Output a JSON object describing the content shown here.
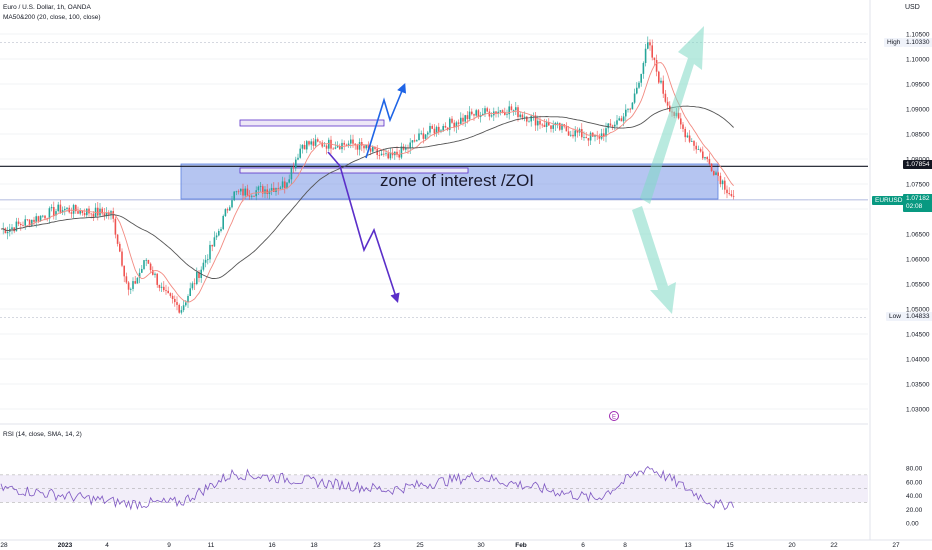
{
  "header": {
    "symbol_line": "Euro / U.S. Dollar, 1h, OANDA",
    "indicator_line": "MA50&200 (20, close, 100, close)",
    "currency": "USD"
  },
  "price_axis": {
    "ticks": [
      "1.10500",
      "1.10000",
      "1.09500",
      "1.09000",
      "1.08500",
      "1.08000",
      "1.07500",
      "1.07000",
      "1.06500",
      "1.06000",
      "1.05500",
      "1.05000",
      "1.04500",
      "1.04000",
      "1.03500",
      "1.03000"
    ],
    "high_label": "High",
    "high_value": "1.10330",
    "low_label": "Low",
    "low_value": "1.04833",
    "level_value": "1.07854",
    "symbol_tag": "EURUSD",
    "current_value": "1.07182",
    "countdown": "02:08"
  },
  "rsi": {
    "label": "RSI (14, close, SMA, 14, 2)",
    "ticks": [
      "80.00",
      "60.00",
      "40.00",
      "20.00",
      "0.00"
    ],
    "upper": 70,
    "middle": 50,
    "lower": 30
  },
  "time_axis": {
    "ticks": [
      "28",
      "2023",
      "4",
      "9",
      "11",
      "16",
      "18",
      "23",
      "25",
      "30",
      "Feb",
      "6",
      "8",
      "13",
      "15",
      "20",
      "22",
      "27"
    ]
  },
  "annotations": {
    "zoi_label": "zone of interest /ZOI",
    "event_marker": "E"
  },
  "colors": {
    "up": "#26a69a",
    "down": "#ef5350",
    "ma_fast": "#f28b82",
    "ma_slow": "#555555",
    "zone": "#5b7fe0",
    "rsi_line": "#7e57c2",
    "rsi_band": "#ede7f6",
    "arrow_blue": "#1e64e6",
    "arrow_purple": "#5b2fc9",
    "arrow_teal": "#80d8c4",
    "current_tag": "#089981",
    "level_tag": "#131722"
  },
  "chart_data": {
    "type": "candlestick",
    "title": "Euro / U.S. Dollar, 1h, OANDA",
    "ylabel": "USD",
    "ylim": [
      1.027,
      1.108
    ],
    "high": 1.1033,
    "low": 1.04833,
    "last": 1.07182,
    "horizontal_level": 1.07854,
    "zone_of_interest": [
      1.072,
      1.079
    ],
    "close_path": [
      {
        "t": "Dec 27",
        "price": 1.066
      },
      {
        "t": "Dec 30",
        "price": 1.07
      },
      {
        "t": "Jan 2",
        "price": 1.069
      },
      {
        "t": "Jan 3",
        "price": 1.053
      },
      {
        "t": "Jan 4",
        "price": 1.06
      },
      {
        "t": "Jan 5",
        "price": 1.053
      },
      {
        "t": "Jan 6",
        "price": 1.05
      },
      {
        "t": "Jan 8",
        "price": 1.064
      },
      {
        "t": "Jan 9",
        "price": 1.073
      },
      {
        "t": "Jan 11",
        "price": 1.074
      },
      {
        "t": "Jan 12",
        "price": 1.075
      },
      {
        "t": "Jan 13",
        "price": 1.083
      },
      {
        "t": "Jan 16",
        "price": 1.083
      },
      {
        "t": "Jan 18",
        "price": 1.08
      },
      {
        "t": "Jan 19",
        "price": 1.082
      },
      {
        "t": "Jan 20",
        "price": 1.085
      },
      {
        "t": "Jan 23",
        "price": 1.089
      },
      {
        "t": "Jan 25",
        "price": 1.09
      },
      {
        "t": "Jan 27",
        "price": 1.087
      },
      {
        "t": "Jan 30",
        "price": 1.084
      },
      {
        "t": "Feb 1",
        "price": 1.09
      },
      {
        "t": "Feb 2",
        "price": 1.103
      },
      {
        "t": "Feb 3",
        "price": 1.092
      },
      {
        "t": "Feb 4",
        "price": 1.086
      },
      {
        "t": "Feb 6",
        "price": 1.077
      },
      {
        "t": "Feb 7",
        "price": 1.0718
      }
    ],
    "rsi_path": [
      {
        "t": "Dec 27",
        "value": 50
      },
      {
        "t": "Jan 3",
        "value": 28
      },
      {
        "t": "Jan 6",
        "value": 30
      },
      {
        "t": "Jan 9",
        "value": 72
      },
      {
        "t": "Jan 13",
        "value": 62
      },
      {
        "t": "Jan 18",
        "value": 48
      },
      {
        "t": "Jan 23",
        "value": 68
      },
      {
        "t": "Jan 30",
        "value": 35
      },
      {
        "t": "Feb 2",
        "value": 82
      },
      {
        "t": "Feb 6",
        "value": 25
      },
      {
        "t": "Feb 7",
        "value": 30
      }
    ]
  }
}
